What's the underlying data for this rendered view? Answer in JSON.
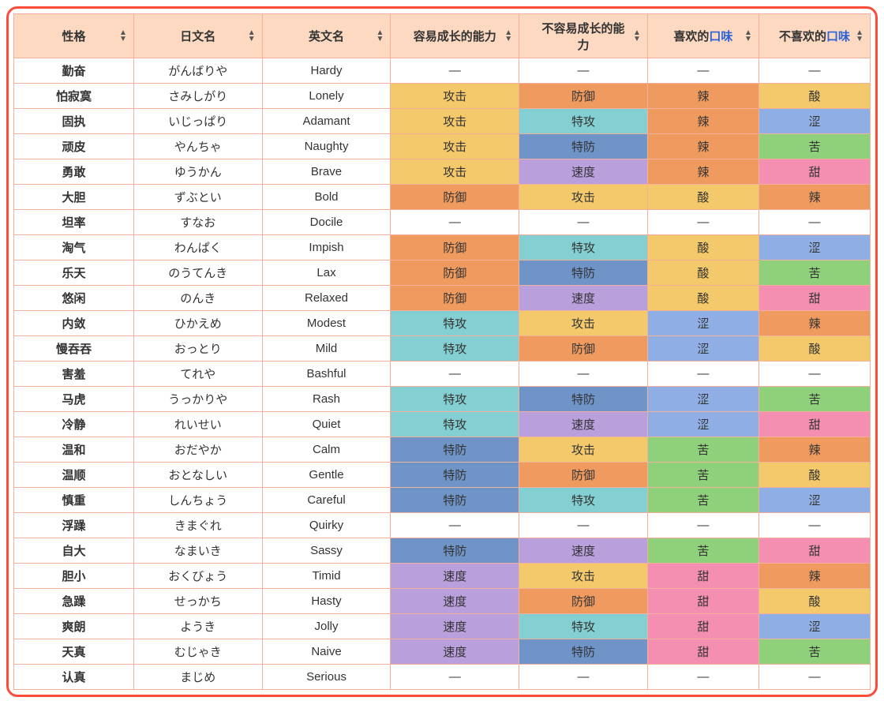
{
  "colors": {
    "frame_border": "#ff4d3a",
    "cell_border": "#f3b09a",
    "header_bg": "#fcd9c0",
    "link": "#2a62d8",
    "stats": {
      "攻击": "#f3c96b",
      "防御": "#ef9a5f",
      "特攻": "#84cfd1",
      "特防": "#6f94c7",
      "速度": "#b99fdc"
    },
    "flavors": {
      "辣": "#ef9a5f",
      "酸": "#f3c96b",
      "涩": "#8faee3",
      "苦": "#8fd17a",
      "甜": "#f48fb1"
    },
    "neutral_bg": "#ffffff"
  },
  "headers": [
    {
      "label": "性格"
    },
    {
      "label": "日文名"
    },
    {
      "label": "英文名"
    },
    {
      "label": "容易成长的能力"
    },
    {
      "label_prefix": "不容易成长的能",
      "label_suffix": "力",
      "wrap": true
    },
    {
      "label_prefix": "喜欢的",
      "link": "口味"
    },
    {
      "label_prefix": "不喜欢的",
      "link": "口味"
    }
  ],
  "rows": [
    {
      "cn": "勤奋",
      "jp": "がんばりや",
      "en": "Hardy",
      "up": "—",
      "down": "—",
      "like": "—",
      "dislike": "—",
      "neutral": true
    },
    {
      "cn": "怕寂寞",
      "jp": "さみしがり",
      "en": "Lonely",
      "up": "攻击",
      "down": "防御",
      "like": "辣",
      "dislike": "酸"
    },
    {
      "cn": "固执",
      "jp": "いじっぱり",
      "en": "Adamant",
      "up": "攻击",
      "down": "特攻",
      "like": "辣",
      "dislike": "涩"
    },
    {
      "cn": "顽皮",
      "jp": "やんちゃ",
      "en": "Naughty",
      "up": "攻击",
      "down": "特防",
      "like": "辣",
      "dislike": "苦"
    },
    {
      "cn": "勇敢",
      "jp": "ゆうかん",
      "en": "Brave",
      "up": "攻击",
      "down": "速度",
      "like": "辣",
      "dislike": "甜"
    },
    {
      "cn": "大胆",
      "jp": "ずぶとい",
      "en": "Bold",
      "up": "防御",
      "down": "攻击",
      "like": "酸",
      "dislike": "辣"
    },
    {
      "cn": "坦率",
      "jp": "すなお",
      "en": "Docile",
      "up": "—",
      "down": "—",
      "like": "—",
      "dislike": "—",
      "neutral": true
    },
    {
      "cn": "淘气",
      "jp": "わんぱく",
      "en": "Impish",
      "up": "防御",
      "down": "特攻",
      "like": "酸",
      "dislike": "涩"
    },
    {
      "cn": "乐天",
      "jp": "のうてんき",
      "en": "Lax",
      "up": "防御",
      "down": "特防",
      "like": "酸",
      "dislike": "苦"
    },
    {
      "cn": "悠闲",
      "jp": "のんき",
      "en": "Relaxed",
      "up": "防御",
      "down": "速度",
      "like": "酸",
      "dislike": "甜"
    },
    {
      "cn": "内敛",
      "jp": "ひかえめ",
      "en": "Modest",
      "up": "特攻",
      "down": "攻击",
      "like": "涩",
      "dislike": "辣"
    },
    {
      "cn": "慢吞吞",
      "jp": "おっとり",
      "en": "Mild",
      "up": "特攻",
      "down": "防御",
      "like": "涩",
      "dislike": "酸"
    },
    {
      "cn": "害羞",
      "jp": "てれや",
      "en": "Bashful",
      "up": "—",
      "down": "—",
      "like": "—",
      "dislike": "—",
      "neutral": true
    },
    {
      "cn": "马虎",
      "jp": "うっかりや",
      "en": "Rash",
      "up": "特攻",
      "down": "特防",
      "like": "涩",
      "dislike": "苦"
    },
    {
      "cn": "冷静",
      "jp": "れいせい",
      "en": "Quiet",
      "up": "特攻",
      "down": "速度",
      "like": "涩",
      "dislike": "甜"
    },
    {
      "cn": "温和",
      "jp": "おだやか",
      "en": "Calm",
      "up": "特防",
      "down": "攻击",
      "like": "苦",
      "dislike": "辣"
    },
    {
      "cn": "温顺",
      "jp": "おとなしい",
      "en": "Gentle",
      "up": "特防",
      "down": "防御",
      "like": "苦",
      "dislike": "酸"
    },
    {
      "cn": "慎重",
      "jp": "しんちょう",
      "en": "Careful",
      "up": "特防",
      "down": "特攻",
      "like": "苦",
      "dislike": "涩"
    },
    {
      "cn": "浮躁",
      "jp": "きまぐれ",
      "en": "Quirky",
      "up": "—",
      "down": "—",
      "like": "—",
      "dislike": "—",
      "neutral": true
    },
    {
      "cn": "自大",
      "jp": "なまいき",
      "en": "Sassy",
      "up": "特防",
      "down": "速度",
      "like": "苦",
      "dislike": "甜"
    },
    {
      "cn": "胆小",
      "jp": "おくびょう",
      "en": "Timid",
      "up": "速度",
      "down": "攻击",
      "like": "甜",
      "dislike": "辣"
    },
    {
      "cn": "急躁",
      "jp": "せっかち",
      "en": "Hasty",
      "up": "速度",
      "down": "防御",
      "like": "甜",
      "dislike": "酸"
    },
    {
      "cn": "爽朗",
      "jp": "ようき",
      "en": "Jolly",
      "up": "速度",
      "down": "特攻",
      "like": "甜",
      "dislike": "涩"
    },
    {
      "cn": "天真",
      "jp": "むじゃき",
      "en": "Naive",
      "up": "速度",
      "down": "特防",
      "like": "甜",
      "dislike": "苦"
    },
    {
      "cn": "认真",
      "jp": "まじめ",
      "en": "Serious",
      "up": "—",
      "down": "—",
      "like": "—",
      "dislike": "—",
      "neutral": true
    }
  ],
  "column_widths": [
    "14%",
    "15%",
    "15%",
    "15%",
    "15%",
    "13%",
    "13%"
  ]
}
